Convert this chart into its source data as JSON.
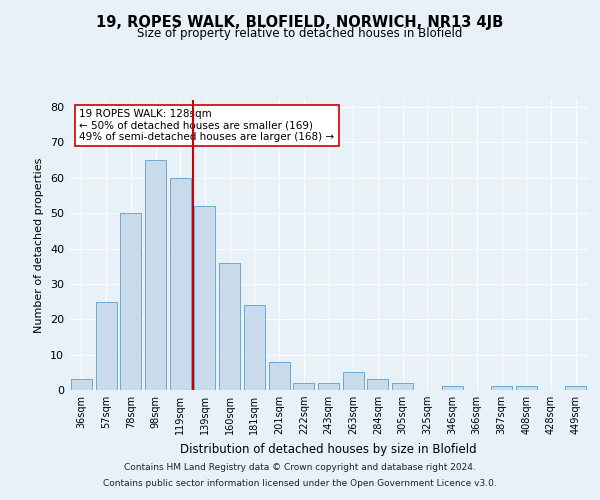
{
  "title1": "19, ROPES WALK, BLOFIELD, NORWICH, NR13 4JB",
  "title2": "Size of property relative to detached houses in Blofield",
  "xlabel": "Distribution of detached houses by size in Blofield",
  "ylabel": "Number of detached properties",
  "categories": [
    "36sqm",
    "57sqm",
    "78sqm",
    "98sqm",
    "119sqm",
    "139sqm",
    "160sqm",
    "181sqm",
    "201sqm",
    "222sqm",
    "243sqm",
    "263sqm",
    "284sqm",
    "305sqm",
    "325sqm",
    "346sqm",
    "366sqm",
    "387sqm",
    "408sqm",
    "428sqm",
    "449sqm"
  ],
  "values": [
    3,
    25,
    50,
    65,
    60,
    52,
    36,
    24,
    8,
    2,
    2,
    5,
    3,
    2,
    0,
    1,
    0,
    1,
    1,
    0,
    1
  ],
  "bar_color": "#c9daea",
  "bar_edge_color": "#6aaad4",
  "line_color": "#cc0000",
  "annotation_text": "19 ROPES WALK: 128sqm\n← 50% of detached houses are smaller (169)\n49% of semi-detached houses are larger (168) →",
  "annotation_box_color": "#ffffff",
  "annotation_box_edge": "#cc0000",
  "ylim": [
    0,
    82
  ],
  "yticks": [
    0,
    10,
    20,
    30,
    40,
    50,
    60,
    70,
    80
  ],
  "footer1": "Contains HM Land Registry data © Crown copyright and database right 2024.",
  "footer2": "Contains public sector information licensed under the Open Government Licence v3.0.",
  "bg_color": "#e8f0f8",
  "plot_bg_color": "#e8f0f8",
  "title1_fontsize": 10.5,
  "title2_fontsize": 8.5
}
